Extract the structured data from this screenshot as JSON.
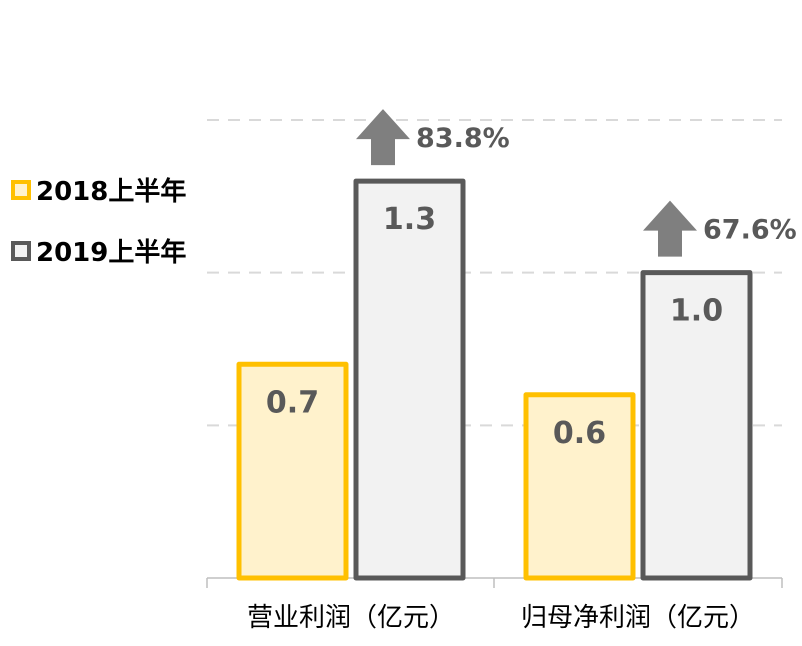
{
  "chart_data": {
    "type": "bar",
    "categories": [
      "营业利润（亿元）",
      "归母净利润（亿元）"
    ],
    "series": [
      {
        "name": "2018上半年",
        "values": [
          0.7,
          0.6
        ],
        "labels": [
          "0.7",
          "0.6"
        ]
      },
      {
        "name": "2019上半年",
        "values": [
          1.3,
          1.0
        ],
        "labels": [
          "1.3",
          "1.0"
        ]
      }
    ],
    "growth": [
      "83.8%",
      "67.6%"
    ],
    "ylim": [
      0,
      1.5
    ],
    "gridlines": [
      0.5,
      1.0,
      1.5
    ],
    "grid": true,
    "legend_position": "left",
    "colors": {
      "s2018_stroke": "#FFC000",
      "s2018_fill": "#FFF2CC",
      "s2019_stroke": "#595959",
      "s2019_fill": "#F2F2F2",
      "arrow": "#7F7F7F",
      "grid": "#D9D9D9",
      "axis": "#BFBFBF"
    }
  }
}
